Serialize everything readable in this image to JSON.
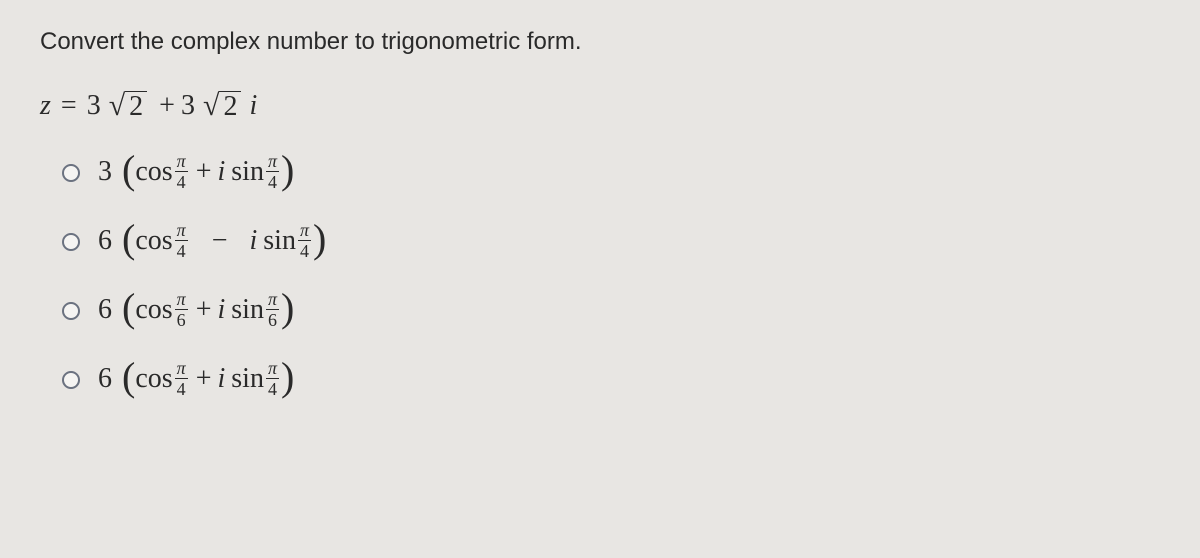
{
  "question": "Convert the complex number to trigonometric form.",
  "given": {
    "lhs_var": "z",
    "equals": "=",
    "coef1": "3",
    "rad1": "2",
    "plus": "+",
    "coef2": "3",
    "rad2": "2",
    "i": "i"
  },
  "options": [
    {
      "coef": "3",
      "cos": "cos",
      "pi": "π",
      "denom": "4",
      "op": "+",
      "i": "i",
      "sin": "sin",
      "pi2": "π",
      "denom2": "4"
    },
    {
      "coef": "6",
      "cos": "cos",
      "pi": "π",
      "denom": "4",
      "op": "−",
      "i": "i",
      "sin": "sin",
      "pi2": "π",
      "denom2": "4"
    },
    {
      "coef": "6",
      "cos": "cos",
      "pi": "π",
      "denom": "6",
      "op": "+",
      "i": "i",
      "sin": "sin",
      "pi2": "π",
      "denom2": "6"
    },
    {
      "coef": "6",
      "cos": "cos",
      "pi": "π",
      "denom": "4",
      "op": "+",
      "i": "i",
      "sin": "sin",
      "pi2": "π",
      "denom2": "4"
    }
  ],
  "colors": {
    "bg": "#e8e6e3",
    "text": "#2a2a2a",
    "radio_border": "#6b7280"
  }
}
